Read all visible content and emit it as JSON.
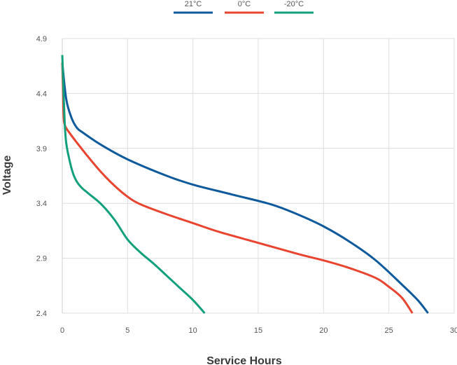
{
  "chart_data": {
    "type": "line",
    "xlabel": "Service Hours",
    "ylabel": "Voltage",
    "xlim": [
      0,
      30
    ],
    "ylim": [
      2.4,
      4.9
    ],
    "xticks": [
      0,
      5,
      10,
      15,
      20,
      25,
      30
    ],
    "yticks": [
      2.4,
      2.9,
      3.4,
      3.9,
      4.4,
      4.9
    ],
    "ytick_labels": [
      "2.4",
      "2.9",
      "3.4",
      "3.9",
      "4.4",
      "4.9"
    ],
    "grid": true,
    "legend_position": "top-center",
    "series": [
      {
        "name": "21°C",
        "color": "#0f5a9c",
        "x": [
          0,
          0.3,
          0.7,
          1.1,
          1.5,
          3,
          5,
          8,
          10,
          13,
          16,
          18,
          20,
          22,
          24,
          26,
          27.2,
          28
        ],
        "y": [
          4.68,
          4.35,
          4.18,
          4.09,
          4.05,
          3.93,
          3.8,
          3.65,
          3.57,
          3.48,
          3.39,
          3.3,
          3.19,
          3.05,
          2.88,
          2.66,
          2.52,
          2.4
        ]
      },
      {
        "name": "0°C",
        "color": "#e8442f",
        "x": [
          0,
          0.05,
          0.1,
          0.2,
          0.5,
          1,
          2,
          3,
          4,
          5,
          6,
          8,
          10,
          12,
          15,
          18,
          20,
          22,
          24,
          25,
          26,
          26.8
        ],
        "y": [
          4.68,
          4.45,
          4.2,
          4.11,
          4.05,
          3.97,
          3.82,
          3.68,
          3.56,
          3.46,
          3.39,
          3.3,
          3.22,
          3.14,
          3.04,
          2.94,
          2.88,
          2.81,
          2.72,
          2.64,
          2.54,
          2.4
        ]
      },
      {
        "name": "-20°C",
        "color": "#12a07c",
        "x": [
          0,
          0.1,
          0.2,
          0.3,
          0.5,
          0.8,
          1.1,
          1.5,
          2,
          3,
          4,
          5,
          6,
          7,
          8,
          9,
          10,
          10.9
        ],
        "y": [
          4.75,
          4.4,
          4.1,
          3.95,
          3.82,
          3.68,
          3.6,
          3.54,
          3.49,
          3.39,
          3.25,
          3.07,
          2.95,
          2.85,
          2.74,
          2.63,
          2.52,
          2.4
        ]
      }
    ]
  }
}
